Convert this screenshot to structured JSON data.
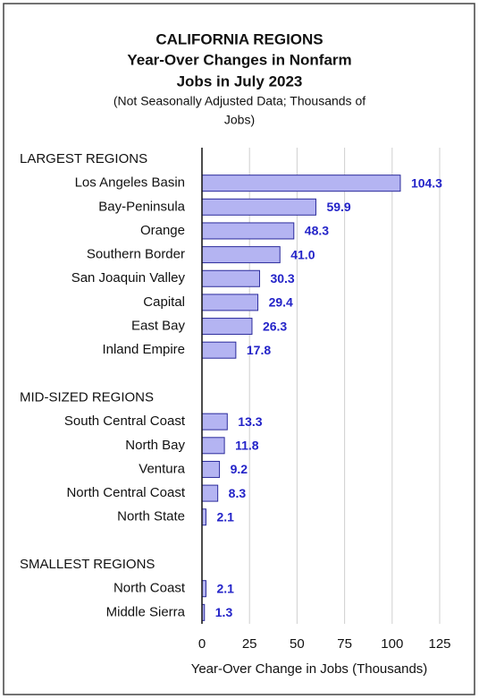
{
  "chart_data": {
    "type": "barh",
    "title": [
      "CALIFORNIA REGIONS",
      "Year-Over Changes in Nonfarm",
      "Jobs in July 2023"
    ],
    "subtitle": [
      "(Not Seasonally Adjusted Data; Thousands of",
      "Jobs)"
    ],
    "x_label": "Year-Over Change in Jobs (Thousands)",
    "categories": [
      "LARGEST REGIONS",
      "Los Angeles Basin",
      "Bay-Peninsula",
      "Orange",
      "Southern Border",
      "San Joaquin Valley",
      "Capital",
      "East Bay",
      "Inland Empire",
      null,
      "MID-SIZED REGIONS",
      "South Central Coast",
      "North Bay",
      "Ventura",
      "North Central Coast",
      "North State",
      null,
      "SMALLEST REGIONS",
      "North Coast",
      "Middle Sierra"
    ],
    "values": [
      null,
      104.3,
      59.9,
      48.3,
      41.0,
      30.3,
      29.4,
      26.3,
      17.8,
      null,
      null,
      13.3,
      11.8,
      9.2,
      8.3,
      2.1,
      null,
      null,
      2.1,
      1.3
    ],
    "value_labels": [
      null,
      "104.3",
      "59.9",
      "48.3",
      "41.0",
      "30.3",
      "29.4",
      "26.3",
      "17.8",
      null,
      null,
      "13.3",
      "11.8",
      "9.2",
      "8.3",
      "2.1",
      null,
      null,
      "2.1",
      "1.3"
    ],
    "color": "#b4b4f2",
    "edge_color": "#2b2b9c",
    "xlim": [
      0,
      125
    ],
    "xticks": [
      0,
      25,
      50,
      75,
      100,
      125
    ],
    "grid": true
  }
}
